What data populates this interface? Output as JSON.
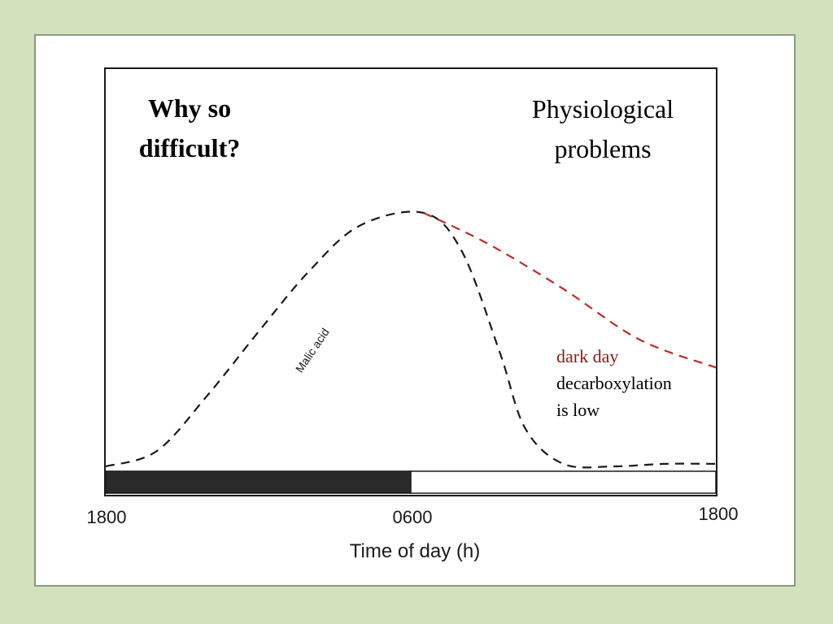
{
  "slide": {
    "title": "Why so difficult?",
    "title_lines": [
      "Why so",
      "difficult?"
    ],
    "subtitle_lines": [
      "Physiological",
      "problems"
    ]
  },
  "annotation": {
    "line1": "dark day",
    "line2": "decarboxylation",
    "line3": "is low",
    "line1_color": "#8b1a1a"
  },
  "colors": {
    "background": "#d3e2bd",
    "panel": "#ffffff",
    "curve": "#1a1a1a",
    "dark_day_curve": "#c0282a",
    "night_bar": "#2a2a2a"
  },
  "chart_data": {
    "type": "line",
    "xlabel": "Time of day (h)",
    "ylabel": "",
    "x_tick_labels": [
      "1800",
      "0600",
      "1800"
    ],
    "xlim": [
      0,
      24
    ],
    "ylim": [
      0,
      1
    ],
    "grid": false,
    "legend": "none",
    "photoperiod_bar": [
      {
        "state": "dark",
        "x_start": 0,
        "x_end": 12
      },
      {
        "state": "light",
        "x_start": 12,
        "x_end": 24
      }
    ],
    "series": [
      {
        "name": "Malic acid",
        "style": "dashed",
        "color": "#1a1a1a",
        "x": [
          0,
          2,
          4,
          6,
          8,
          10,
          12.5,
          14,
          15.5,
          16.5,
          18,
          20,
          22,
          24
        ],
        "y": [
          0.0,
          0.06,
          0.28,
          0.53,
          0.77,
          0.95,
          1.0,
          0.85,
          0.45,
          0.15,
          0.01,
          0.0,
          0.01,
          0.01
        ]
      },
      {
        "name": "dark day",
        "style": "dashed",
        "color": "#c0282a",
        "x": [
          12.5,
          15,
          18,
          21,
          24
        ],
        "y": [
          1.0,
          0.88,
          0.7,
          0.5,
          0.39
        ]
      }
    ]
  }
}
